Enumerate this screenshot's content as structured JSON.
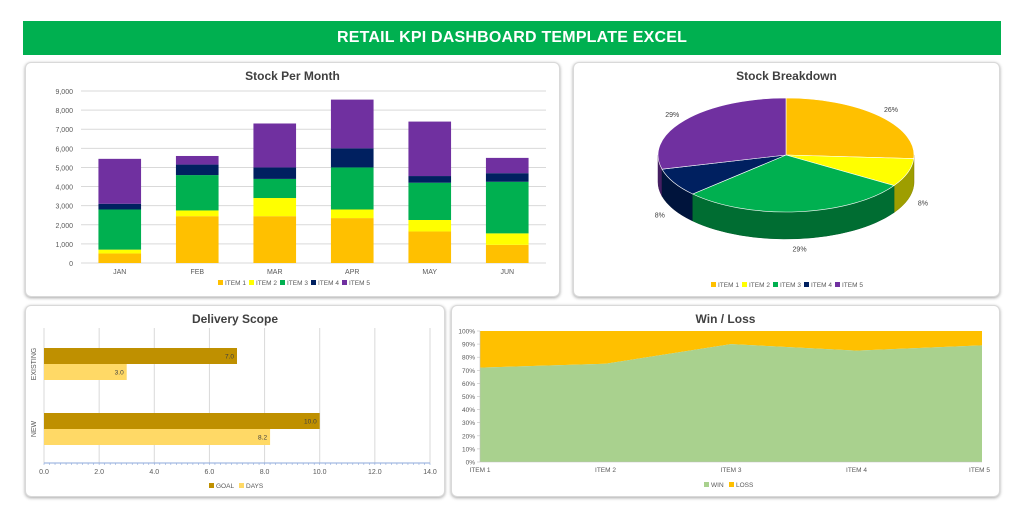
{
  "header": {
    "title": "RETAIL KPI DASHBOARD TEMPLATE EXCEL"
  },
  "colors": {
    "item1": "#ffc000",
    "item2": "#ffff00",
    "item3": "#00b050",
    "item4": "#002060",
    "item5": "#7030a0",
    "goal": "#bf9000",
    "days": "#ffd966",
    "win": "#a9d18e",
    "loss": "#ffc000",
    "banner": "#00b050"
  },
  "chart_data": [
    {
      "type": "bar",
      "stacked": true,
      "title": "Stock Per Month",
      "categories": [
        "JAN",
        "FEB",
        "MAR",
        "APR",
        "MAY",
        "JUN"
      ],
      "series": [
        {
          "name": "ITEM 1",
          "values": [
            500,
            2450,
            2450,
            2350,
            1650,
            950
          ]
        },
        {
          "name": "ITEM 2",
          "values": [
            200,
            300,
            950,
            450,
            600,
            600
          ]
        },
        {
          "name": "ITEM 3",
          "values": [
            2100,
            1850,
            1000,
            2200,
            1950,
            2700
          ]
        },
        {
          "name": "ITEM 4",
          "values": [
            300,
            550,
            600,
            1000,
            350,
            450
          ]
        },
        {
          "name": "ITEM 5",
          "values": [
            2350,
            450,
            2300,
            2550,
            2850,
            800
          ]
        }
      ],
      "yticks": [
        "0",
        "1,000",
        "2,000",
        "3,000",
        "4,000",
        "5,000",
        "6,000",
        "7,000",
        "8,000",
        "9,000"
      ],
      "ylim": [
        0,
        9000
      ]
    },
    {
      "type": "pie",
      "title": "Stock Breakdown",
      "labels": [
        "ITEM 1",
        "ITEM 2",
        "ITEM 3",
        "ITEM 4",
        "ITEM 5"
      ],
      "values": [
        26,
        8,
        29,
        8,
        29
      ],
      "data_labels": [
        "26%",
        "8%",
        "29%",
        "8%",
        "29%"
      ]
    },
    {
      "type": "bar",
      "orientation": "horizontal",
      "title": "Delivery Scope",
      "categories": [
        "EXISTING",
        "NEW"
      ],
      "series": [
        {
          "name": "GOAL",
          "values": [
            7.0,
            10.0
          ],
          "labels": [
            "7.0",
            "10.0"
          ]
        },
        {
          "name": "DAYS",
          "values": [
            3.0,
            8.2
          ],
          "labels": [
            "3.0",
            "8.2"
          ]
        }
      ],
      "xticks": [
        "0.0",
        "2.0",
        "4.0",
        "6.0",
        "8.0",
        "10.0",
        "12.0",
        "14.0"
      ],
      "xlim": [
        0,
        14
      ]
    },
    {
      "type": "area",
      "stacked": true,
      "title": "Win / Loss",
      "categories": [
        "ITEM 1",
        "ITEM 2",
        "ITEM 3",
        "ITEM 4",
        "ITEM 5"
      ],
      "series": [
        {
          "name": "WIN",
          "values": [
            72,
            75,
            90,
            85,
            89
          ]
        },
        {
          "name": "LOSS",
          "values": [
            28,
            25,
            10,
            15,
            11
          ]
        }
      ],
      "yticks": [
        "0%",
        "10%",
        "20%",
        "30%",
        "40%",
        "50%",
        "60%",
        "70%",
        "80%",
        "90%",
        "100%"
      ],
      "ylim": [
        0,
        100
      ]
    }
  ]
}
